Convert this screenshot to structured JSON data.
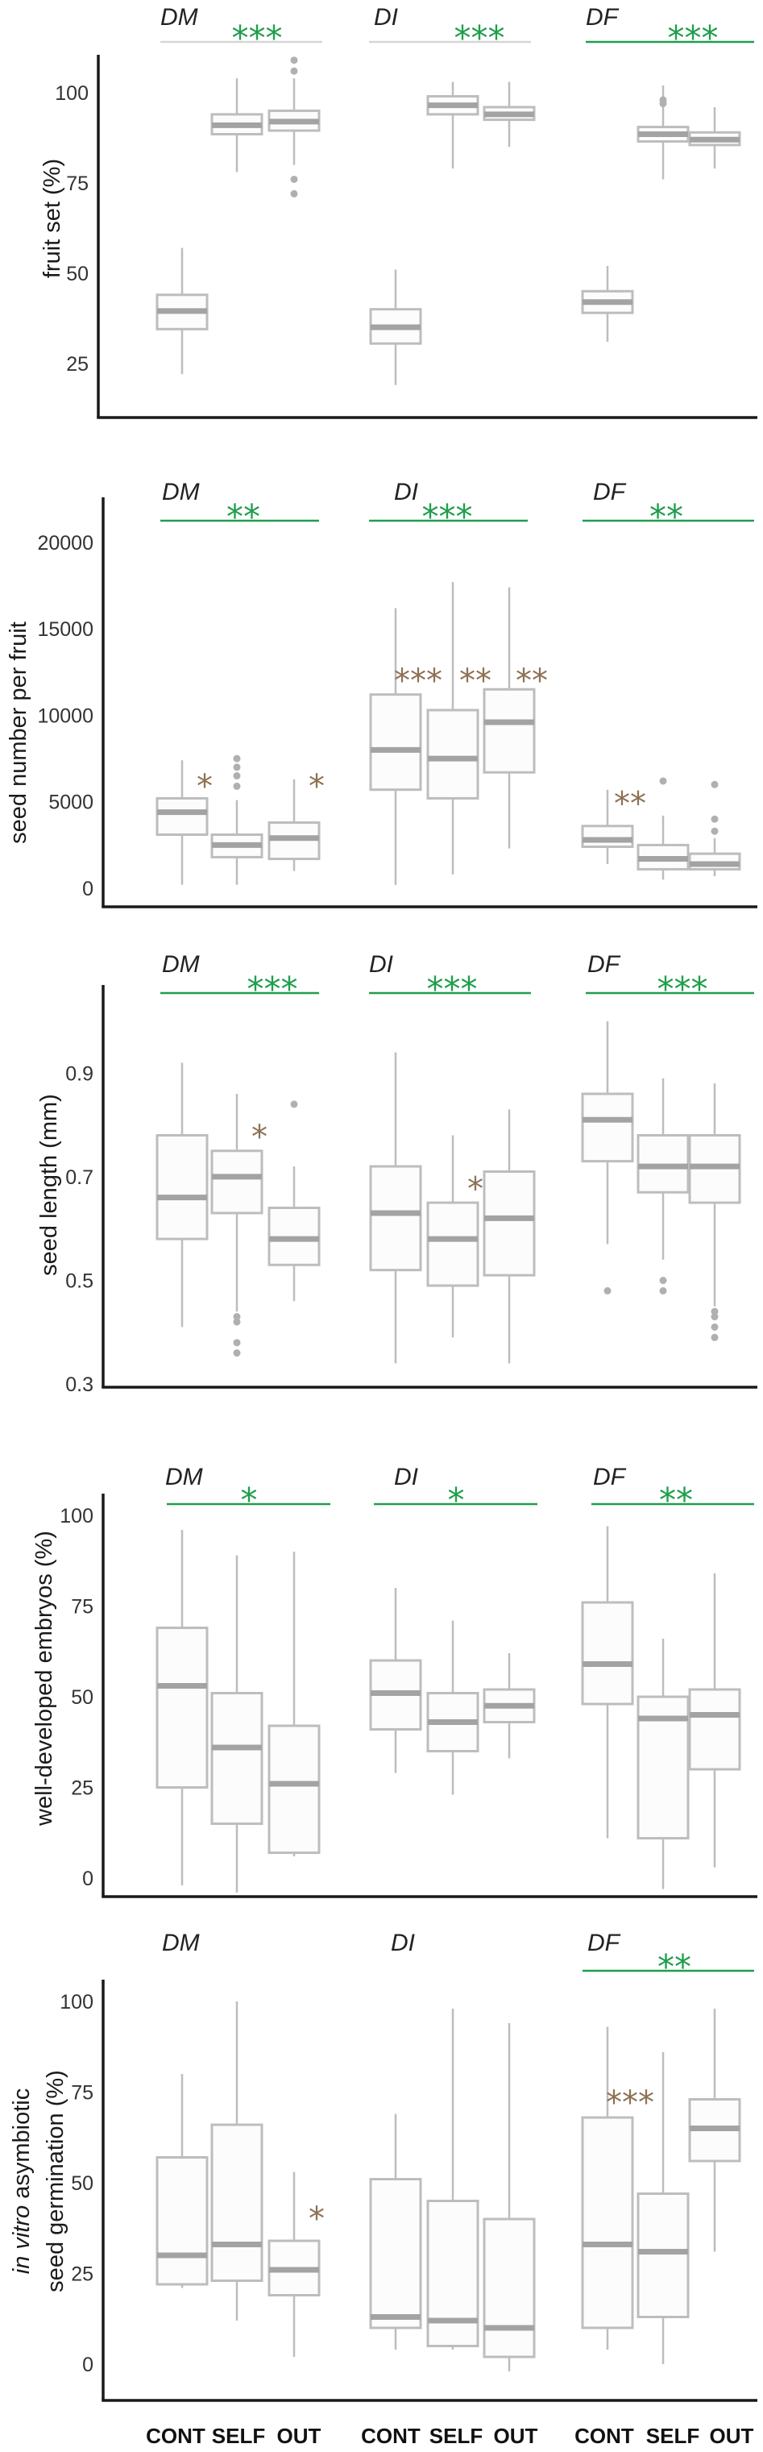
{
  "x_categories": [
    "CONT",
    "SELF",
    "OUT"
  ],
  "colors": {
    "axis": "#1a1a1a",
    "box_stroke": "#bdbdbd",
    "box_fill": "#fcfcfc",
    "median": "#a3a3a3",
    "outlier": "#b0b0b0",
    "group_star": "#1f9e4d",
    "within_star": "#8d7154"
  },
  "chart_data": [
    {
      "type": "boxplot",
      "ylabel_lines": [
        [
          {
            "text": "fruit set (%)",
            "italic": false
          }
        ]
      ],
      "ylim": [
        10,
        110.5
      ],
      "yticks": [
        25,
        50,
        75,
        100
      ],
      "groups": [
        {
          "name": "DM",
          "boxes": [
            {
              "whisker_low": 22,
              "q1": 34.5,
              "median": 39.5,
              "q3": 44,
              "whisker_high": 57,
              "outliers": []
            },
            {
              "whisker_low": 78,
              "q1": 88.5,
              "median": 91,
              "q3": 94,
              "whisker_high": 104,
              "outliers": []
            },
            {
              "whisker_low": 80,
              "q1": 89.5,
              "median": 92,
              "q3": 95,
              "whisker_high": 104,
              "outliers": [
                72,
                76,
                106,
                109
              ]
            }
          ]
        },
        {
          "name": "DI",
          "boxes": [
            {
              "whisker_low": 19,
              "q1": 30.5,
              "median": 35,
              "q3": 40,
              "whisker_high": 51,
              "outliers": []
            },
            {
              "whisker_low": 79,
              "q1": 94,
              "median": 96.5,
              "q3": 99,
              "whisker_high": 103,
              "outliers": []
            },
            {
              "whisker_low": 85,
              "q1": 92.5,
              "median": 94,
              "q3": 96,
              "whisker_high": 103,
              "outliers": []
            }
          ]
        },
        {
          "name": "DF",
          "boxes": [
            {
              "whisker_low": 31,
              "q1": 39,
              "median": 42,
              "q3": 45,
              "whisker_high": 52,
              "outliers": []
            },
            {
              "whisker_low": 76,
              "q1": 86.5,
              "median": 88.5,
              "q3": 90.5,
              "whisker_high": 102,
              "outliers": [
                97,
                98
              ]
            },
            {
              "whisker_low": 79,
              "q1": 85.5,
              "median": 87,
              "q3": 89,
              "whisker_high": 96,
              "outliers": []
            }
          ]
        }
      ],
      "group_significance": [
        {
          "group_index": 0,
          "label": "***",
          "line_color": "#d6d6d6"
        },
        {
          "group_index": 1,
          "label": "***",
          "line_color": "#d6d6d6"
        },
        {
          "group_index": 2,
          "label": "***",
          "line_color": "#1f9e4d"
        }
      ],
      "within_significance": []
    },
    {
      "type": "boxplot",
      "ylabel_lines": [
        [
          {
            "text": "seed number per fruit",
            "italic": false
          }
        ]
      ],
      "ylim": [
        -1070,
        22600
      ],
      "yticks": [
        0,
        5000,
        10000,
        15000,
        20000
      ],
      "groups": [
        {
          "name": "DM",
          "boxes": [
            {
              "whisker_low": 200,
              "q1": 3100,
              "median": 4400,
              "q3": 5200,
              "whisker_high": 7400,
              "outliers": []
            },
            {
              "whisker_low": 200,
              "q1": 1800,
              "median": 2500,
              "q3": 3100,
              "whisker_high": 5100,
              "outliers": [
                5900,
                6500,
                7000,
                7500
              ]
            },
            {
              "whisker_low": 1000,
              "q1": 1700,
              "median": 2900,
              "q3": 3800,
              "whisker_high": 6300,
              "outliers": []
            }
          ]
        },
        {
          "name": "DI",
          "boxes": [
            {
              "whisker_low": 200,
              "q1": 5700,
              "median": 8000,
              "q3": 11200,
              "whisker_high": 16200,
              "outliers": []
            },
            {
              "whisker_low": 800,
              "q1": 5200,
              "median": 7500,
              "q3": 10300,
              "whisker_high": 17700,
              "outliers": []
            },
            {
              "whisker_low": 2300,
              "q1": 6700,
              "median": 9600,
              "q3": 11500,
              "whisker_high": 17400,
              "outliers": []
            }
          ]
        },
        {
          "name": "DF",
          "boxes": [
            {
              "whisker_low": 1400,
              "q1": 2400,
              "median": 2800,
              "q3": 3600,
              "whisker_high": 5700,
              "outliers": []
            },
            {
              "whisker_low": 500,
              "q1": 1100,
              "median": 1700,
              "q3": 2500,
              "whisker_high": 4200,
              "outliers": [
                6200
              ]
            },
            {
              "whisker_low": 700,
              "q1": 1100,
              "median": 1400,
              "q3": 2000,
              "whisker_high": 2900,
              "outliers": [
                3300,
                4000,
                6000
              ]
            }
          ]
        }
      ],
      "group_significance": [
        {
          "group_index": 0,
          "label": "**",
          "line_color": "#1f9e4d"
        },
        {
          "group_index": 1,
          "label": "***",
          "line_color": "#1f9e4d"
        },
        {
          "group_index": 2,
          "label": "**",
          "line_color": "#1f9e4d"
        }
      ],
      "within_significance": [
        {
          "group_index": 0,
          "category_index": 0,
          "label": "*",
          "y": 6300
        },
        {
          "group_index": 0,
          "category_index": 2,
          "label": "*",
          "y": 6300
        },
        {
          "group_index": 1,
          "category_index": 0,
          "label": "***",
          "y": 12400
        },
        {
          "group_index": 1,
          "category_index": 1,
          "label": "**",
          "y": 12400
        },
        {
          "group_index": 1,
          "category_index": 2,
          "label": "**",
          "y": 12400
        },
        {
          "group_index": 2,
          "category_index": 0,
          "label": "**",
          "y": 5300
        }
      ]
    },
    {
      "type": "boxplot",
      "ylabel_lines": [
        [
          {
            "text": "seed length (mm)",
            "italic": false
          }
        ]
      ],
      "ylim": [
        0.294,
        1.07
      ],
      "yticks": [
        0.3,
        0.5,
        0.7,
        0.9
      ],
      "groups": [
        {
          "name": "DM",
          "boxes": [
            {
              "whisker_low": 0.41,
              "q1": 0.58,
              "median": 0.66,
              "q3": 0.78,
              "whisker_high": 0.92,
              "outliers": []
            },
            {
              "whisker_low": 0.44,
              "q1": 0.63,
              "median": 0.7,
              "q3": 0.75,
              "whisker_high": 0.86,
              "outliers": [
                0.36,
                0.38,
                0.42,
                0.43
              ]
            },
            {
              "whisker_low": 0.46,
              "q1": 0.53,
              "median": 0.58,
              "q3": 0.64,
              "whisker_high": 0.72,
              "outliers": [
                0.84
              ]
            }
          ]
        },
        {
          "name": "DI",
          "boxes": [
            {
              "whisker_low": 0.34,
              "q1": 0.52,
              "median": 0.63,
              "q3": 0.72,
              "whisker_high": 0.94,
              "outliers": []
            },
            {
              "whisker_low": 0.39,
              "q1": 0.49,
              "median": 0.58,
              "q3": 0.65,
              "whisker_high": 0.78,
              "outliers": []
            },
            {
              "whisker_low": 0.34,
              "q1": 0.51,
              "median": 0.62,
              "q3": 0.71,
              "whisker_high": 0.83,
              "outliers": []
            }
          ]
        },
        {
          "name": "DF",
          "boxes": [
            {
              "whisker_low": 0.57,
              "q1": 0.73,
              "median": 0.81,
              "q3": 0.86,
              "whisker_high": 1.0,
              "outliers": [
                0.48
              ]
            },
            {
              "whisker_low": 0.54,
              "q1": 0.67,
              "median": 0.72,
              "q3": 0.78,
              "whisker_high": 0.89,
              "outliers": [
                0.48,
                0.5
              ]
            },
            {
              "whisker_low": 0.45,
              "q1": 0.65,
              "median": 0.72,
              "q3": 0.78,
              "whisker_high": 0.88,
              "outliers": [
                0.39,
                0.41,
                0.43,
                0.44
              ]
            }
          ]
        }
      ],
      "group_significance": [
        {
          "group_index": 0,
          "label": "***",
          "line_color": "#1f9e4d"
        },
        {
          "group_index": 1,
          "label": "***",
          "line_color": "#1f9e4d"
        },
        {
          "group_index": 2,
          "label": "***",
          "line_color": "#1f9e4d"
        }
      ],
      "within_significance": [
        {
          "group_index": 0,
          "category_index": 1,
          "label": "*",
          "y": 0.79
        },
        {
          "group_index": 1,
          "category_index": 1,
          "label": "*",
          "y": 0.69
        }
      ]
    },
    {
      "type": "boxplot",
      "ylabel_lines": [
        [
          {
            "text": "well-developed embryos (%)",
            "italic": false
          }
        ]
      ],
      "ylim": [
        -5.1,
        106
      ],
      "yticks": [
        0,
        25,
        50,
        75,
        100
      ],
      "groups": [
        {
          "name": "DM",
          "boxes": [
            {
              "whisker_low": -2,
              "q1": 25,
              "median": 53,
              "q3": 69,
              "whisker_high": 96,
              "outliers": []
            },
            {
              "whisker_low": -4,
              "q1": 15,
              "median": 36,
              "q3": 51,
              "whisker_high": 89,
              "outliers": []
            },
            {
              "whisker_low": 6,
              "q1": 7,
              "median": 26,
              "q3": 42,
              "whisker_high": 90,
              "outliers": []
            }
          ]
        },
        {
          "name": "DI",
          "boxes": [
            {
              "whisker_low": 29,
              "q1": 41,
              "median": 51,
              "q3": 60,
              "whisker_high": 80,
              "outliers": []
            },
            {
              "whisker_low": 23,
              "q1": 35,
              "median": 43,
              "q3": 51,
              "whisker_high": 71,
              "outliers": []
            },
            {
              "whisker_low": 33,
              "q1": 43,
              "median": 47.5,
              "q3": 52,
              "whisker_high": 62,
              "outliers": []
            }
          ]
        },
        {
          "name": "DF",
          "boxes": [
            {
              "whisker_low": 11,
              "q1": 48,
              "median": 59,
              "q3": 76,
              "whisker_high": 97,
              "outliers": []
            },
            {
              "whisker_low": -3,
              "q1": 11,
              "median": 44,
              "q3": 50,
              "whisker_high": 66,
              "outliers": []
            },
            {
              "whisker_low": 3,
              "q1": 30,
              "median": 45,
              "q3": 52,
              "whisker_high": 84,
              "outliers": []
            }
          ]
        }
      ],
      "group_significance": [
        {
          "group_index": 0,
          "label": "*",
          "line_color": "#1f9e4d"
        },
        {
          "group_index": 1,
          "label": "*",
          "line_color": "#1f9e4d"
        },
        {
          "group_index": 2,
          "label": "**",
          "line_color": "#1f9e4d"
        }
      ],
      "within_significance": []
    },
    {
      "type": "boxplot",
      "ylabel_lines": [
        [
          {
            "text": "in vitro",
            "italic": true
          },
          {
            "text": " asymbiotic",
            "italic": false
          }
        ],
        [
          {
            "text": "seed germination (%)",
            "italic": false
          }
        ]
      ],
      "ylim": [
        -10,
        106
      ],
      "yticks": [
        0,
        25,
        50,
        75,
        100
      ],
      "groups": [
        {
          "name": "DM",
          "boxes": [
            {
              "whisker_low": 21,
              "q1": 22,
              "median": 30,
              "q3": 57,
              "whisker_high": 80,
              "outliers": []
            },
            {
              "whisker_low": 12,
              "q1": 23,
              "median": 33,
              "q3": 66,
              "whisker_high": 100,
              "outliers": []
            },
            {
              "whisker_low": 2,
              "q1": 19,
              "median": 26,
              "q3": 34,
              "whisker_high": 53,
              "outliers": []
            }
          ]
        },
        {
          "name": "DI",
          "boxes": [
            {
              "whisker_low": 4,
              "q1": 10,
              "median": 13,
              "q3": 51,
              "whisker_high": 69,
              "outliers": []
            },
            {
              "whisker_low": 4,
              "q1": 5,
              "median": 12,
              "q3": 45,
              "whisker_high": 98,
              "outliers": []
            },
            {
              "whisker_low": -2,
              "q1": 2,
              "median": 10,
              "q3": 40,
              "whisker_high": 94,
              "outliers": []
            }
          ]
        },
        {
          "name": "DF",
          "boxes": [
            {
              "whisker_low": 4,
              "q1": 10,
              "median": 33,
              "q3": 68,
              "whisker_high": 93,
              "outliers": []
            },
            {
              "whisker_low": 0,
              "q1": 13,
              "median": 31,
              "q3": 47,
              "whisker_high": 86,
              "outliers": []
            },
            {
              "whisker_low": 31,
              "q1": 56,
              "median": 65,
              "q3": 73,
              "whisker_high": 98,
              "outliers": []
            }
          ]
        }
      ],
      "group_significance": [
        {
          "group_index": 2,
          "label": "**",
          "line_color": "#1f9e4d"
        }
      ],
      "within_significance": [
        {
          "group_index": 0,
          "category_index": 2,
          "label": "*",
          "y": 42
        },
        {
          "group_index": 2,
          "category_index": 0,
          "label": "***",
          "y": 74
        }
      ]
    }
  ]
}
